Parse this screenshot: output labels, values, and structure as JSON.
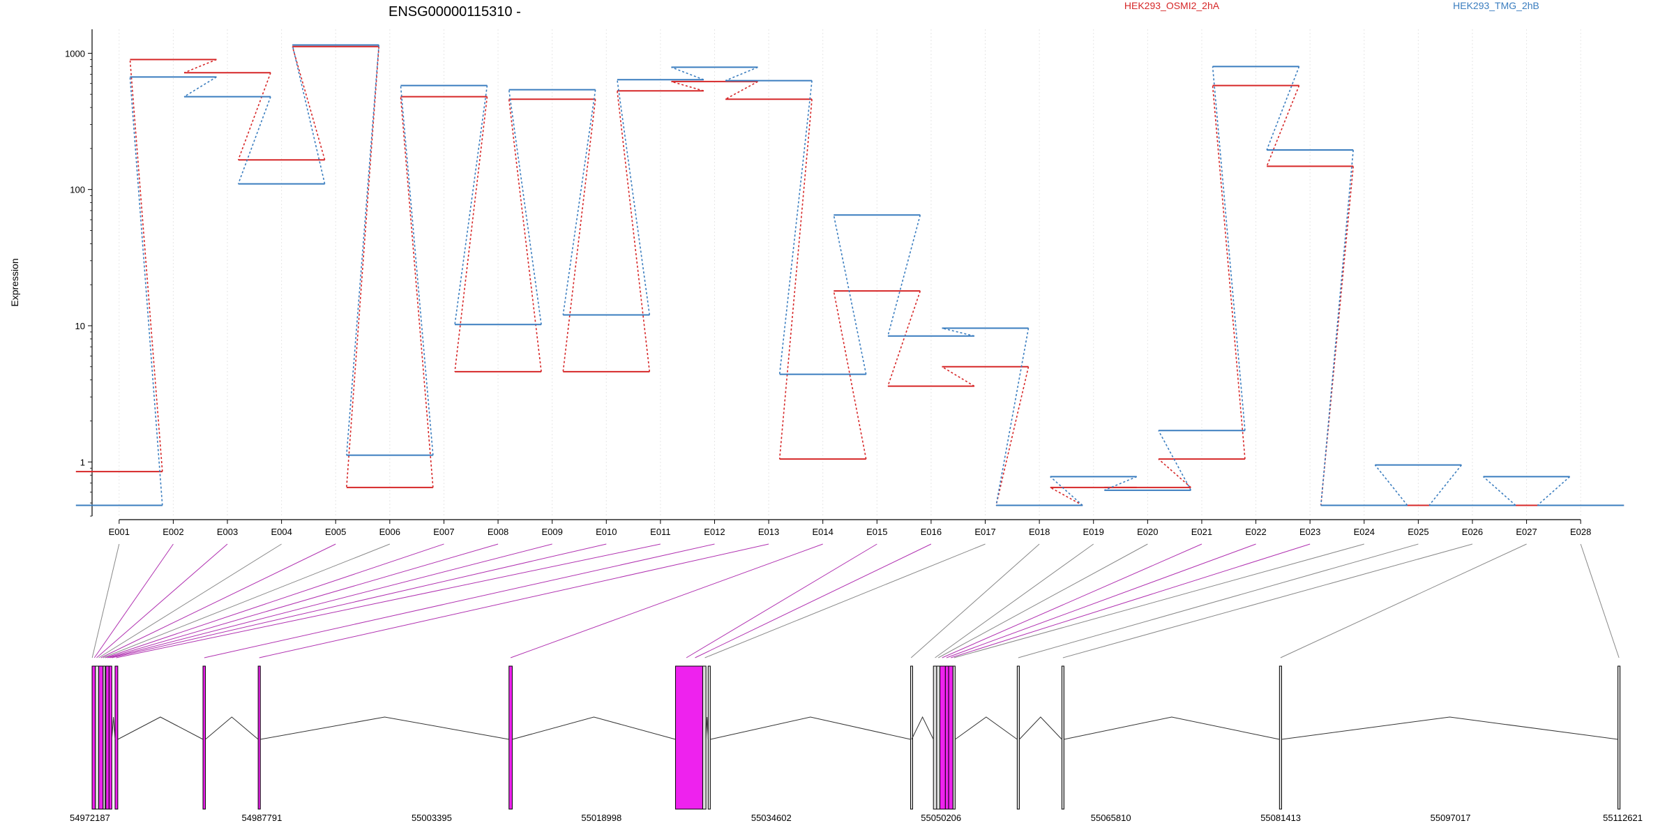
{
  "chart_data": {
    "type": "line",
    "title": "ENSG00000115310 -",
    "ylabel": "Expression",
    "xlabel": "",
    "yscale": "log",
    "ylim": [
      0.4,
      1500
    ],
    "yticks": [
      1,
      10,
      100,
      1000
    ],
    "ytick_labels": [
      "1",
      "10",
      "100",
      "1000"
    ],
    "grid": "vertical dotted",
    "legend_placement": "top-right",
    "categories": [
      "E001",
      "E002",
      "E003",
      "E004",
      "E005",
      "E006",
      "E007",
      "E008",
      "E009",
      "E010",
      "E011",
      "E012",
      "E013",
      "E014",
      "E015",
      "E016",
      "E017",
      "E018",
      "E019",
      "E020",
      "E021",
      "E022",
      "E023",
      "E024",
      "E025",
      "E026",
      "E027",
      "E028"
    ],
    "series": [
      {
        "name": "HEK293_OSMI2_2hA",
        "color": "#d62728",
        "values": [
          0.85,
          900,
          720,
          165,
          1120,
          0.65,
          480,
          4.6,
          460,
          4.6,
          530,
          620,
          460,
          1.05,
          18,
          3.6,
          5,
          0.48,
          0.65,
          0.65,
          1.05,
          580,
          148,
          0.48,
          0.48,
          0.48,
          0.48,
          0.48
        ]
      },
      {
        "name": "HEK293_TMG_2hB",
        "color": "#3a7dbf",
        "values": [
          0.48,
          670,
          480,
          110,
          1150,
          1.12,
          580,
          10.2,
          540,
          12,
          640,
          790,
          630,
          4.4,
          65,
          8.4,
          9.6,
          0.48,
          0.78,
          0.62,
          1.7,
          800,
          195,
          0.48,
          0.95,
          0.48,
          0.78,
          0.48
        ]
      }
    ],
    "gene_model": {
      "axis_ticks": [
        "54972187",
        "54987791",
        "55003395",
        "55018998",
        "55034602",
        "55050206",
        "55065810",
        "55081413",
        "55097017",
        "55112621"
      ],
      "domain": [
        54972187,
        55112621
      ],
      "exons": [
        {
          "start": 54972190,
          "end": 54972480,
          "color": "#ee22ee"
        },
        {
          "start": 54972480,
          "end": 54972800,
          "color": "#dddddd"
        },
        {
          "start": 54972800,
          "end": 54973200,
          "color": "#ee22ee"
        },
        {
          "start": 54973200,
          "end": 54973400,
          "color": "#dddddd"
        },
        {
          "start": 54973450,
          "end": 54973750,
          "color": "#ee22ee"
        },
        {
          "start": 54973750,
          "end": 54974000,
          "color": "#ee22ee"
        },
        {
          "start": 54974300,
          "end": 54974550,
          "color": "#ee22ee"
        },
        {
          "start": 54982380,
          "end": 54982600,
          "color": "#ee22ee"
        },
        {
          "start": 54987450,
          "end": 54987650,
          "color": "#ee22ee"
        },
        {
          "start": 55010500,
          "end": 55010800,
          "color": "#ee22ee"
        },
        {
          "start": 55025800,
          "end": 55028300,
          "color": "#ee22ee"
        },
        {
          "start": 55028300,
          "end": 55028600,
          "color": "#dddddd"
        },
        {
          "start": 55028800,
          "end": 55029000,
          "color": "#dddddd"
        },
        {
          "start": 55047400,
          "end": 55047500,
          "color": "#dddddd"
        },
        {
          "start": 55049500,
          "end": 55049800,
          "color": "#dddddd"
        },
        {
          "start": 55049800,
          "end": 55050100,
          "color": "#dddddd"
        },
        {
          "start": 55050100,
          "end": 55050600,
          "color": "#ee22ee"
        },
        {
          "start": 55050600,
          "end": 55050900,
          "color": "#ee22ee"
        },
        {
          "start": 55050900,
          "end": 55051300,
          "color": "#ee22ee"
        },
        {
          "start": 55051300,
          "end": 55051500,
          "color": "#dddddd"
        },
        {
          "start": 55057200,
          "end": 55057400,
          "color": "#dddddd"
        },
        {
          "start": 55061300,
          "end": 55061500,
          "color": "#dddddd"
        },
        {
          "start": 55081300,
          "end": 55081500,
          "color": "#dddddd"
        },
        {
          "start": 55112400,
          "end": 55112600,
          "color": "#dddddd"
        }
      ],
      "exon_map": [
        {
          "exon": "E001",
          "pos": 54972200,
          "color": "#888888"
        },
        {
          "exon": "E002",
          "pos": 54972400,
          "color": "#b030b0"
        },
        {
          "exon": "E003",
          "pos": 54972600,
          "color": "#b030b0"
        },
        {
          "exon": "E004",
          "pos": 54972800,
          "color": "#888888"
        },
        {
          "exon": "E005",
          "pos": 54973000,
          "color": "#b030b0"
        },
        {
          "exon": "E006",
          "pos": 54973200,
          "color": "#888888"
        },
        {
          "exon": "E007",
          "pos": 54973400,
          "color": "#b030b0"
        },
        {
          "exon": "E008",
          "pos": 54973600,
          "color": "#b030b0"
        },
        {
          "exon": "E009",
          "pos": 54973800,
          "color": "#b030b0"
        },
        {
          "exon": "E010",
          "pos": 54974000,
          "color": "#b030b0"
        },
        {
          "exon": "E011",
          "pos": 54974400,
          "color": "#b030b0"
        },
        {
          "exon": "E012",
          "pos": 54982500,
          "color": "#b030b0"
        },
        {
          "exon": "E013",
          "pos": 54987550,
          "color": "#b030b0"
        },
        {
          "exon": "E014",
          "pos": 55010650,
          "color": "#b030b0"
        },
        {
          "exon": "E015",
          "pos": 55026800,
          "color": "#b030b0"
        },
        {
          "exon": "E016",
          "pos": 55027600,
          "color": "#b030b0"
        },
        {
          "exon": "E017",
          "pos": 55028500,
          "color": "#888888"
        },
        {
          "exon": "E018",
          "pos": 55047450,
          "color": "#888888"
        },
        {
          "exon": "E019",
          "pos": 55049650,
          "color": "#888888"
        },
        {
          "exon": "E020",
          "pos": 55049950,
          "color": "#888888"
        },
        {
          "exon": "E021",
          "pos": 55050300,
          "color": "#b030b0"
        },
        {
          "exon": "E022",
          "pos": 55050700,
          "color": "#b030b0"
        },
        {
          "exon": "E023",
          "pos": 55051100,
          "color": "#b030b0"
        },
        {
          "exon": "E024",
          "pos": 55051400,
          "color": "#888888"
        },
        {
          "exon": "E025",
          "pos": 55057300,
          "color": "#888888"
        },
        {
          "exon": "E026",
          "pos": 55061400,
          "color": "#888888"
        },
        {
          "exon": "E027",
          "pos": 55081400,
          "color": "#888888"
        },
        {
          "exon": "E028",
          "pos": 55112500,
          "color": "#888888"
        }
      ]
    }
  }
}
